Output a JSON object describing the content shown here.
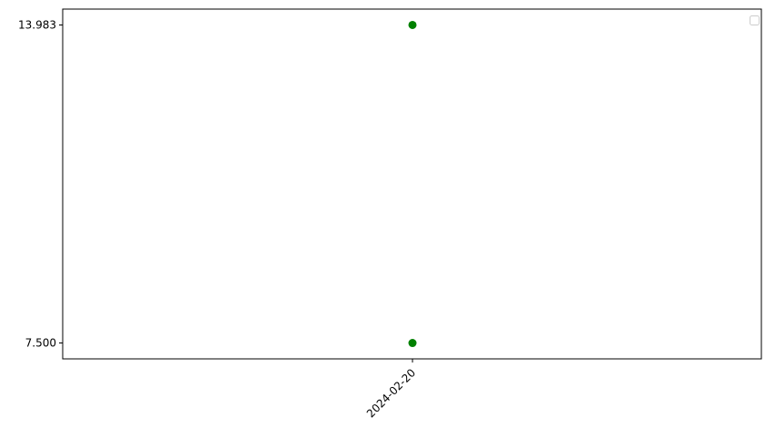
{
  "chart_data": {
    "type": "scatter",
    "title": "",
    "xlabel": "",
    "ylabel": "",
    "x_ticks": [
      "2024-02-20"
    ],
    "y_ticks": [
      7.5,
      13.983
    ],
    "y_tick_labels": [
      "7.500",
      "13.983"
    ],
    "ylim": [
      7.176,
      14.307
    ],
    "grid": false,
    "legend": {
      "placement": "top-right",
      "entries": []
    },
    "series": [
      {
        "color": "#008000",
        "points": [
          {
            "x": "2024-02-20",
            "y": 13.983
          },
          {
            "x": "2024-02-20",
            "y": 7.5
          }
        ]
      }
    ]
  }
}
